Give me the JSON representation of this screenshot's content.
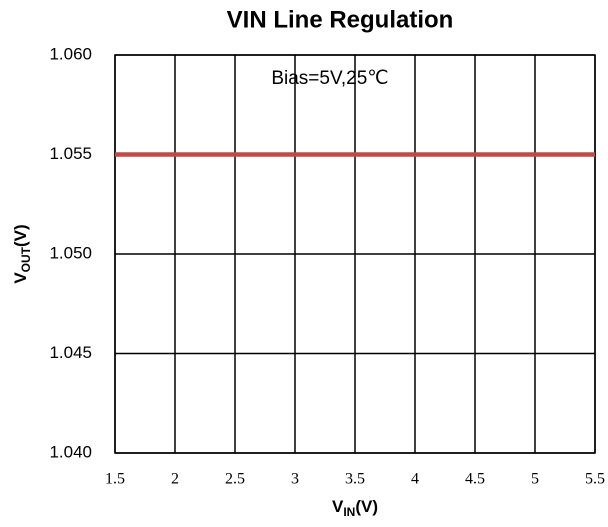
{
  "chart_data": {
    "type": "line",
    "title": "VIN Line Regulation",
    "annotation": "Bias=5V,25℃",
    "x_label": {
      "main": "V",
      "sub": "IN",
      "unit": "(V)"
    },
    "y_label": {
      "main": "V",
      "sub": "OUT",
      "unit": "(V)"
    },
    "x": [
      1.5,
      2,
      2.5,
      3,
      3.5,
      4,
      4.5,
      5,
      5.5
    ],
    "series": [
      {
        "name": "VOUT",
        "color": "#be4b48",
        "values": [
          1.055,
          1.055,
          1.055,
          1.055,
          1.055,
          1.055,
          1.055,
          1.055,
          1.055
        ]
      }
    ],
    "xlim": [
      1.5,
      5.5
    ],
    "xticks": [
      1.5,
      2,
      2.5,
      3,
      3.5,
      4,
      4.5,
      5,
      5.5
    ],
    "ylim": [
      1.04,
      1.06
    ],
    "yticks": [
      {
        "value": 1.04,
        "label": "1.040"
      },
      {
        "value": 1.045,
        "label": "1.045"
      },
      {
        "value": 1.05,
        "label": "1.050"
      },
      {
        "value": 1.055,
        "label": "1.055"
      },
      {
        "value": 1.06,
        "label": "1.060"
      }
    ],
    "grid": true
  }
}
